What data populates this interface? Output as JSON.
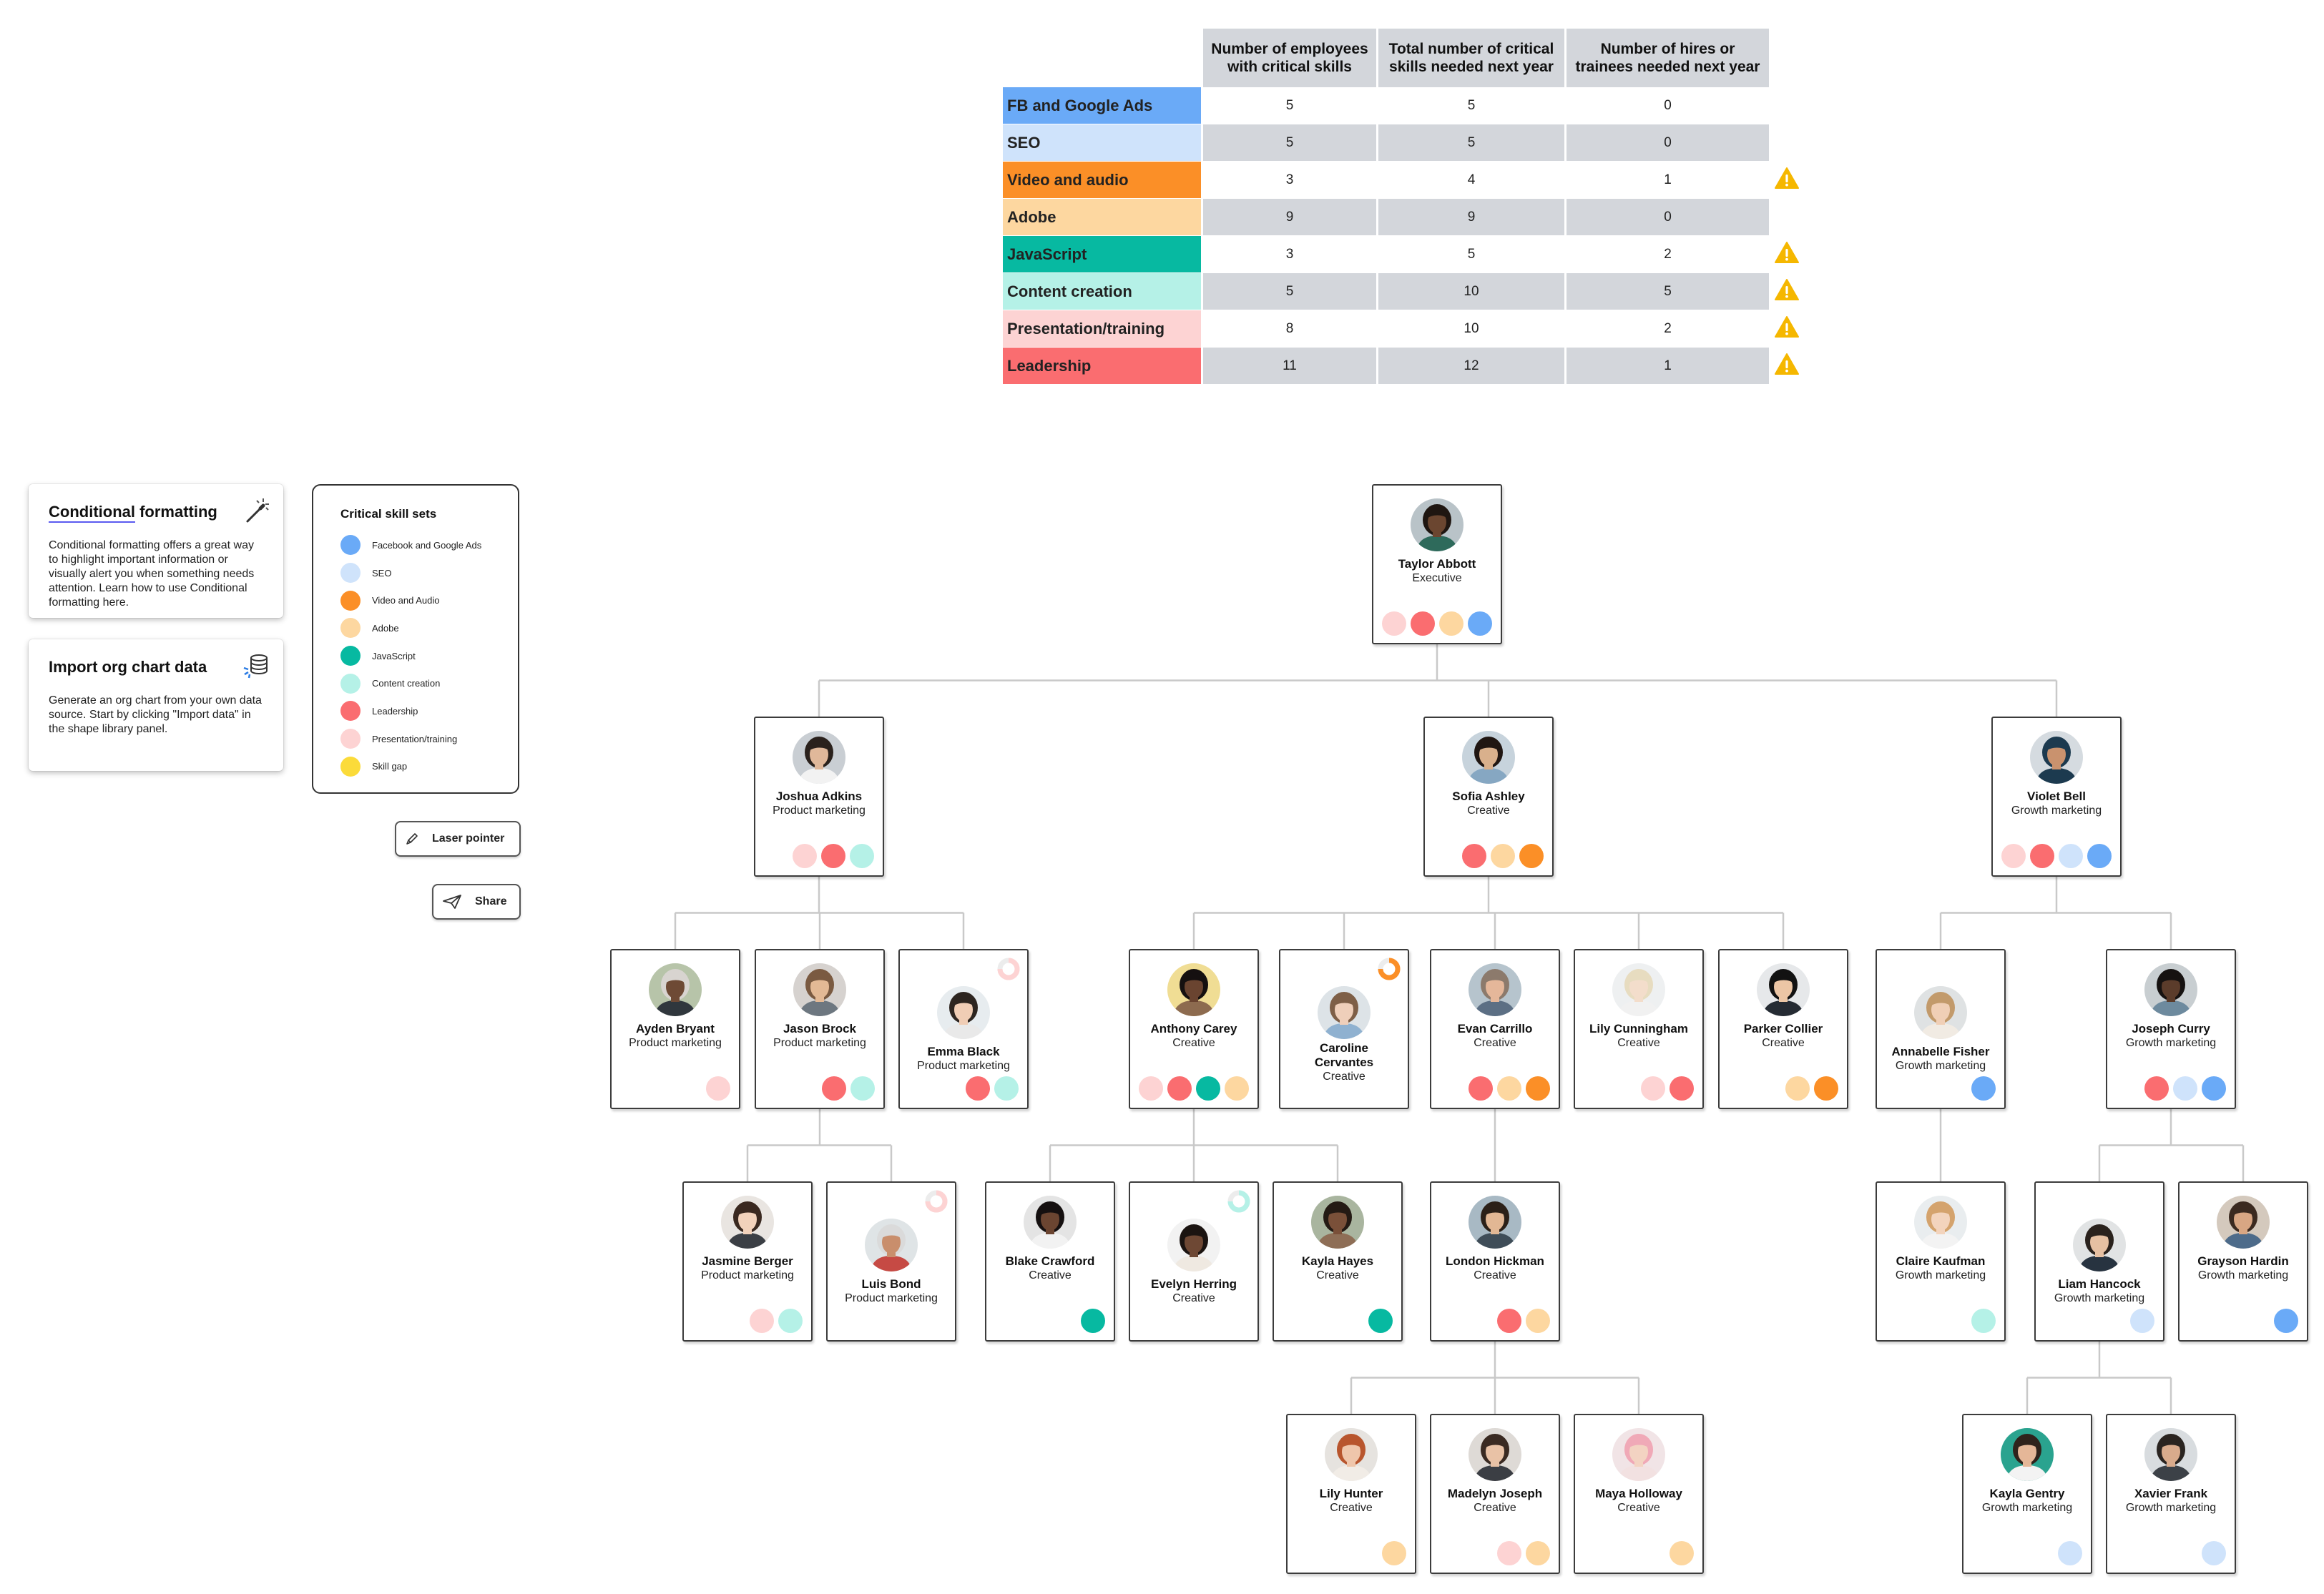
{
  "colors": {
    "fb": "#6aaaf7",
    "seo": "#cfe3fb",
    "video": "#fb8f27",
    "adobe": "#fdd7a0",
    "js": "#07b9a1",
    "content": "#b5f1e7",
    "presentation": "#fdd3d3",
    "leadership": "#fa6d70",
    "gap": "#fbdb3a",
    "warning": "#f5b700"
  },
  "table": {
    "headers": [
      "Number of employees with critical skills",
      "Total number of critical skills needed next year",
      "Number of hires or trainees needed next year"
    ],
    "rows": [
      {
        "skill": "FB and Google Ads",
        "color": "#6aaaf7",
        "employees": "5",
        "needed": "5",
        "hires": "0",
        "warning": false
      },
      {
        "skill": "SEO",
        "color": "#cfe3fb",
        "employees": "5",
        "needed": "5",
        "hires": "0",
        "warning": false
      },
      {
        "skill": "Video and audio",
        "color": "#fb8f27",
        "employees": "3",
        "needed": "4",
        "hires": "1",
        "warning": true
      },
      {
        "skill": "Adobe",
        "color": "#fdd7a0",
        "employees": "9",
        "needed": "9",
        "hires": "0",
        "warning": false
      },
      {
        "skill": "JavaScript",
        "color": "#07b9a1",
        "employees": "3",
        "needed": "5",
        "hires": "2",
        "warning": true
      },
      {
        "skill": "Content creation",
        "color": "#b5f1e7",
        "employees": "5",
        "needed": "10",
        "hires": "5",
        "warning": true
      },
      {
        "skill": "Presentation/training",
        "color": "#fdd3d3",
        "employees": "8",
        "needed": "10",
        "hires": "2",
        "warning": true
      },
      {
        "skill": "Leadership",
        "color": "#fa6d70",
        "employees": "11",
        "needed": "12",
        "hires": "1",
        "warning": true
      }
    ]
  },
  "cards": {
    "conditional": {
      "title_highlight": "Conditional",
      "title_rest": " formatting",
      "body": "Conditional formatting offers a great way to highlight important information or visually alert you when something needs attention. Learn how to use Conditional formatting here.",
      "icon": "magic-wand-icon"
    },
    "import": {
      "title": "Import org chart data",
      "body": "Generate an org chart from your own data source. Start by clicking \"Import data\" in the shape library panel.",
      "icon": "database-icon"
    }
  },
  "legend": {
    "title": "Critical skill sets",
    "items": [
      {
        "label": "Facebook and Google Ads",
        "key": "fb"
      },
      {
        "label": "SEO",
        "key": "seo"
      },
      {
        "label": "Video and Audio",
        "key": "video"
      },
      {
        "label": "Adobe",
        "key": "adobe"
      },
      {
        "label": "JavaScript",
        "key": "js"
      },
      {
        "label": "Content creation",
        "key": "content"
      },
      {
        "label": "Leadership",
        "key": "leadership"
      },
      {
        "label": "Presentation/training",
        "key": "presentation"
      },
      {
        "label": "Skill gap",
        "key": "gap"
      }
    ]
  },
  "tools": {
    "laser": {
      "label": "Laser pointer",
      "icon": "pen-icon"
    },
    "share": {
      "label": "Share",
      "icon": "paper-plane-icon"
    }
  },
  "people": [
    {
      "id": "taylor",
      "name": "Taylor Abbott",
      "role": "Executive",
      "skills": [
        "presentation",
        "leadership",
        "adobe",
        "fb"
      ],
      "parent": null,
      "photo": {
        "skin": "#6b4630",
        "hair": "#1f1611",
        "shirt": "#2e6a5b",
        "bg": "#b9c3c8"
      }
    },
    {
      "id": "joshua",
      "name": "Joshua Adkins",
      "role": "Product marketing",
      "skills": [
        "presentation",
        "leadership",
        "content"
      ],
      "parent": "taylor",
      "photo": {
        "skin": "#e0b89a",
        "hair": "#2a211c",
        "shirt": "#f2f2f2",
        "bg": "#c9ced3"
      }
    },
    {
      "id": "sofia",
      "name": "Sofia Ashley",
      "role": "Creative",
      "skills": [
        "leadership",
        "adobe",
        "video"
      ],
      "parent": "taylor",
      "photo": {
        "skin": "#d9b08c",
        "hair": "#201612",
        "shirt": "#86a7c2",
        "bg": "#c7d3dc"
      }
    },
    {
      "id": "violet",
      "name": "Violet Bell",
      "role": "Growth marketing",
      "skills": [
        "presentation",
        "leadership",
        "seo",
        "fb"
      ],
      "parent": "taylor",
      "photo": {
        "skin": "#c9926e",
        "hair": "#1c3a4f",
        "shirt": "#1c3a4f",
        "bg": "#d5dbe0"
      }
    },
    {
      "id": "ayden",
      "name": "Ayden Bryant",
      "role": "Product marketing",
      "skills": [
        "presentation"
      ],
      "parent": "joshua",
      "photo": {
        "skin": "#6e4a35",
        "hair": "#d8d4d0",
        "shirt": "#30373d",
        "bg": "#b7c4a9"
      }
    },
    {
      "id": "jason",
      "name": "Jason Brock",
      "role": "Product marketing",
      "skills": [
        "leadership",
        "content"
      ],
      "parent": "joshua",
      "photo": {
        "skin": "#e3b995",
        "hair": "#7a5a41",
        "shirt": "#6d7780",
        "bg": "#d6d2cf"
      }
    },
    {
      "id": "emma",
      "name": "Emma Black",
      "role": "Product marketing",
      "skills": [
        "leadership",
        "content"
      ],
      "parent": "joshua",
      "ring": "presentation",
      "photo": {
        "skin": "#f0cdb5",
        "hair": "#2d2520",
        "shirt": "#e9e9e9",
        "bg": "#e7ecef"
      }
    },
    {
      "id": "jasmine",
      "name": "Jasmine Berger",
      "role": "Product marketing",
      "skills": [
        "presentation",
        "content"
      ],
      "parent": "jason",
      "photo": {
        "skin": "#f2d2bb",
        "hair": "#3a2920",
        "shirt": "#3b3f45",
        "bg": "#e9e5e1"
      }
    },
    {
      "id": "luis",
      "name": "Luis Bond",
      "role": "Product marketing",
      "skills": [],
      "parent": "jason",
      "ring": "presentation",
      "photo": {
        "skin": "#c98e6c",
        "hair": "#dadada",
        "shirt": "#c64a44",
        "bg": "#dfe4e6"
      }
    },
    {
      "id": "anthony",
      "name": "Anthony Carey",
      "role": "Creative",
      "skills": [
        "presentation",
        "leadership",
        "js",
        "adobe"
      ],
      "parent": "sofia",
      "photo": {
        "skin": "#6a4430",
        "hair": "#151010",
        "shirt": "#8d6b4f",
        "bg": "#f0dd94"
      }
    },
    {
      "id": "caroline",
      "name": "Caroline Cervantes",
      "role": "Creative",
      "skills": [],
      "parent": "sofia",
      "ring": "video",
      "photo": {
        "skin": "#efcfba",
        "hair": "#7e5f47",
        "shirt": "#8fb1d0",
        "bg": "#dde3e7"
      }
    },
    {
      "id": "evan",
      "name": "Evan Carrillo",
      "role": "Creative",
      "skills": [
        "leadership",
        "adobe",
        "video"
      ],
      "parent": "sofia",
      "photo": {
        "skin": "#e5b79a",
        "hair": "#8c7a6c",
        "shirt": "#5c6f84",
        "bg": "#b6c4cd"
      }
    },
    {
      "id": "lily_c",
      "name": "Lily Cunningham",
      "role": "Creative",
      "skills": [
        "presentation",
        "leadership"
      ],
      "parent": "sofia",
      "photo": {
        "skin": "#f3ddcb",
        "hair": "#e7dcc0",
        "shirt": "#f1f1f1",
        "bg": "#eef0f1"
      }
    },
    {
      "id": "parker",
      "name": "Parker Collier",
      "role": "Creative",
      "skills": [
        "adobe",
        "video"
      ],
      "parent": "sofia",
      "photo": {
        "skin": "#ecc6a5",
        "hair": "#121212",
        "shirt": "#252b33",
        "bg": "#e6e8ea"
      }
    },
    {
      "id": "annabelle",
      "name": "Annabelle Fisher",
      "role": "Growth marketing",
      "skills": [
        "fb"
      ],
      "parent": "violet",
      "photo": {
        "skin": "#f0cfb6",
        "hair": "#c29a6b",
        "shirt": "#f1ebe3",
        "bg": "#dfe2e3"
      }
    },
    {
      "id": "joseph",
      "name": "Joseph Curry",
      "role": "Growth marketing",
      "skills": [
        "leadership",
        "seo",
        "fb"
      ],
      "parent": "violet",
      "photo": {
        "skin": "#5b3c2b",
        "hair": "#161211",
        "shirt": "#6d8a9e",
        "bg": "#c8ced1"
      }
    },
    {
      "id": "blake",
      "name": "Blake Crawford",
      "role": "Creative",
      "skills": [
        "js"
      ],
      "parent": "anthony",
      "photo": {
        "skin": "#6b4531",
        "hair": "#151010",
        "shirt": "#f2f2f2",
        "bg": "#e4e4e4"
      }
    },
    {
      "id": "evelyn",
      "name": "Evelyn Herring",
      "role": "Creative",
      "skills": [],
      "parent": "anthony",
      "ring": "content",
      "photo": {
        "skin": "#6e4834",
        "hair": "#1b1411",
        "shirt": "#efe9e1",
        "bg": "#f2f2f2"
      }
    },
    {
      "id": "kayla_h",
      "name": "Kayla Hayes",
      "role": "Creative",
      "skills": [
        "js"
      ],
      "parent": "anthony",
      "photo": {
        "skin": "#7a5039",
        "hair": "#241a14",
        "shirt": "#8e6e56",
        "bg": "#a9b59f"
      }
    },
    {
      "id": "london",
      "name": "London Hickman",
      "role": "Creative",
      "skills": [
        "leadership",
        "adobe"
      ],
      "parent": "evan",
      "photo": {
        "skin": "#e2b794",
        "hair": "#2b2018",
        "shirt": "#3f4d58",
        "bg": "#a8b9c4"
      }
    },
    {
      "id": "claire",
      "name": "Claire Kaufman",
      "role": "Growth marketing",
      "skills": [
        "content"
      ],
      "parent": "annabelle",
      "photo": {
        "skin": "#f3d4bd",
        "hair": "#d4a36d",
        "shirt": "#f3f3f3",
        "bg": "#e9edef"
      }
    },
    {
      "id": "liam",
      "name": "Liam Hancock",
      "role": "Growth marketing",
      "skills": [
        "seo"
      ],
      "parent": "joseph",
      "photo": {
        "skin": "#e6c0a2",
        "hair": "#2a221d",
        "shirt": "#273340",
        "bg": "#e1e3e4"
      }
    },
    {
      "id": "grayson",
      "name": "Grayson Hardin",
      "role": "Growth marketing",
      "skills": [
        "fb"
      ],
      "parent": "joseph",
      "photo": {
        "skin": "#d8a683",
        "hair": "#3b2a20",
        "shirt": "#4d6b8a",
        "bg": "#d4c9bd"
      }
    },
    {
      "id": "lily_h",
      "name": "Lily Hunter",
      "role": "Creative",
      "skills": [
        "adobe"
      ],
      "parent": "london",
      "photo": {
        "skin": "#efc6ab",
        "hair": "#b8552d",
        "shirt": "#f1ece6",
        "bg": "#e6e3df"
      }
    },
    {
      "id": "madelyn",
      "name": "Madelyn Joseph",
      "role": "Creative",
      "skills": [
        "presentation",
        "adobe"
      ],
      "parent": "london",
      "photo": {
        "skin": "#e9c2a6",
        "hair": "#3a2a22",
        "shirt": "#3b3e44",
        "bg": "#dedad6"
      }
    },
    {
      "id": "maya",
      "name": "Maya Holloway",
      "role": "Creative",
      "skills": [
        "adobe"
      ],
      "parent": "london",
      "photo": {
        "skin": "#f3d3c2",
        "hair": "#f0a9b7",
        "shirt": "#f2e1e1",
        "bg": "#f1e4e6"
      }
    },
    {
      "id": "kayla_g",
      "name": "Kayla Gentry",
      "role": "Growth marketing",
      "skills": [
        "seo"
      ],
      "parent": "liam",
      "photo": {
        "skin": "#e5b798",
        "hair": "#2f231c",
        "shirt": "#f3f3f3",
        "bg": "#2aa38f"
      }
    },
    {
      "id": "xavier",
      "name": "Xavier Frank",
      "role": "Growth marketing",
      "skills": [
        "seo"
      ],
      "parent": "liam",
      "photo": {
        "skin": "#d9ab8c",
        "hair": "#2a2420",
        "shirt": "#3c4147",
        "bg": "#d8dcdf"
      }
    }
  ]
}
